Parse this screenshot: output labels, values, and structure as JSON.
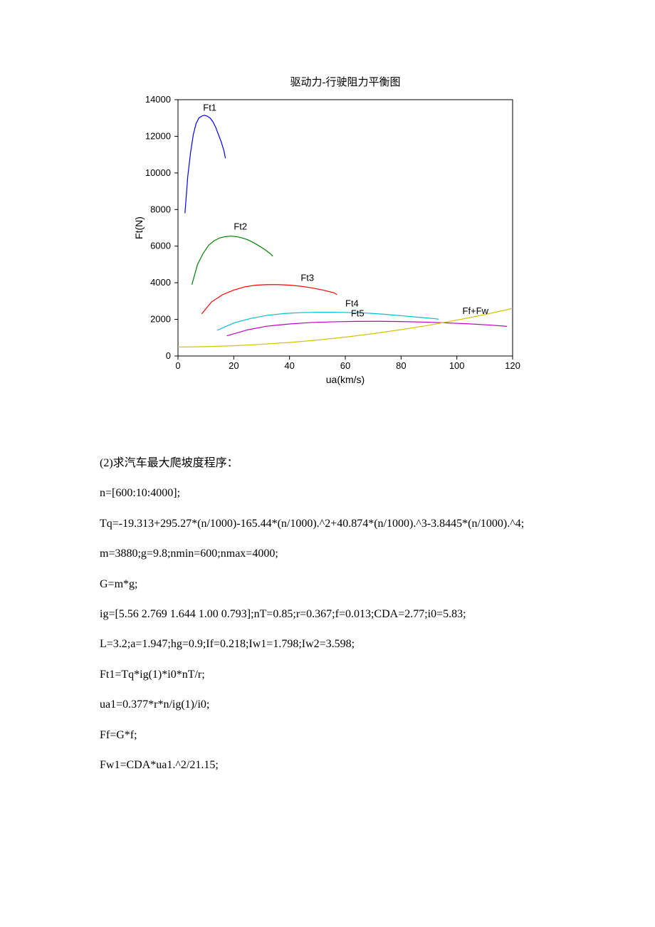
{
  "chart": {
    "type": "line",
    "title": "驱动力-行驶阻力平衡图",
    "title_fontsize": 15,
    "xlabel": "ua(km/s)",
    "ylabel": "Ft(N)",
    "label_fontsize": 14,
    "tick_fontsize": 13,
    "background_color": "#ffffff",
    "axis_color": "#000000",
    "xlim": [
      0,
      120
    ],
    "ylim": [
      0,
      14000
    ],
    "xtick_step": 20,
    "ytick_step": 2000,
    "xticks": [
      0,
      20,
      40,
      60,
      80,
      100,
      120
    ],
    "yticks": [
      0,
      2000,
      4000,
      6000,
      8000,
      10000,
      12000,
      14000
    ],
    "line_width": 1.2,
    "series": [
      {
        "name": "Ft1",
        "label": "Ft1",
        "color": "#0000ff",
        "label_x": 9,
        "label_y": 13400,
        "x": [
          2.5,
          3.5,
          4.5,
          5.5,
          6.5,
          7.5,
          8.5,
          9.5,
          10.5,
          11.5,
          12.5,
          13.5,
          14.5,
          15.5,
          16.5,
          17
        ],
        "y": [
          7800,
          9800,
          11100,
          12100,
          12700,
          13000,
          13100,
          13150,
          13100,
          13000,
          12800,
          12500,
          12100,
          11700,
          11200,
          10800
        ]
      },
      {
        "name": "Ft2",
        "label": "Ft2",
        "color": "#008000",
        "label_x": 20,
        "label_y": 6900,
        "x": [
          5,
          7,
          9,
          11,
          13,
          15,
          17,
          19,
          21,
          23,
          25,
          27,
          29,
          31,
          33,
          34
        ],
        "y": [
          3900,
          5000,
          5600,
          6050,
          6300,
          6450,
          6520,
          6550,
          6520,
          6450,
          6350,
          6200,
          6020,
          5830,
          5600,
          5450
        ]
      },
      {
        "name": "Ft3",
        "label": "Ft3",
        "color": "#ff0000",
        "label_x": 44,
        "label_y": 4100,
        "x": [
          8.5,
          12,
          16,
          20,
          24,
          28,
          32,
          36,
          40,
          44,
          48,
          52,
          56,
          57
        ],
        "y": [
          2300,
          2950,
          3350,
          3600,
          3780,
          3870,
          3900,
          3900,
          3870,
          3810,
          3720,
          3600,
          3450,
          3350
        ]
      },
      {
        "name": "Ft4",
        "label": "Ft4",
        "color": "#00bcd4",
        "label_x": 60,
        "label_y": 2700,
        "x": [
          14,
          20,
          26,
          32,
          38,
          44,
          50,
          56,
          62,
          68,
          74,
          80,
          86,
          92,
          93.5
        ],
        "y": [
          1400,
          1800,
          2050,
          2220,
          2320,
          2370,
          2390,
          2390,
          2370,
          2340,
          2280,
          2200,
          2120,
          2040,
          2010
        ]
      },
      {
        "name": "Ft5",
        "label": "Ft5",
        "color": "#c000c0",
        "label_x": 62,
        "label_y": 2150,
        "x": [
          17.5,
          25,
          32,
          40,
          48,
          56,
          64,
          72,
          80,
          88,
          96,
          104,
          112,
          118
        ],
        "y": [
          1100,
          1430,
          1630,
          1750,
          1830,
          1870,
          1890,
          1895,
          1880,
          1855,
          1810,
          1760,
          1690,
          1620
        ]
      },
      {
        "name": "FfFw",
        "label": "Ff+Fw",
        "color": "#d4c400",
        "label_x": 102,
        "label_y": 2300,
        "x": [
          0,
          10,
          20,
          30,
          40,
          50,
          60,
          70,
          80,
          90,
          100,
          110,
          120
        ],
        "y": [
          490,
          510,
          560,
          640,
          740,
          870,
          1030,
          1220,
          1440,
          1680,
          1960,
          2260,
          2600
        ]
      }
    ]
  },
  "text": {
    "l1": "(2)求汽车最大爬坡度程序：",
    "l2": "n=[600:10:4000];",
    "l3": "Tq=-19.313+295.27*(n/1000)-165.44*(n/1000).^2+40.874*(n/1000).^3-3.8445*(n/1000).^4;",
    "l4": "m=3880;g=9.8;nmin=600;nmax=4000;",
    "l5": "G=m*g;",
    "l6": "ig=[5.56 2.769 1.644 1.00 0.793];nT=0.85;r=0.367;f=0.013;CDA=2.77;i0=5.83;",
    "l7": "L=3.2;a=1.947;hg=0.9;If=0.218;Iw1=1.798;Iw2=3.598;",
    "l8": "Ft1=Tq*ig(1)*i0*nT/r;",
    "l9": "ua1=0.377*r*n/ig(1)/i0;",
    "l10": "Ff=G*f;",
    "l11": "Fw1=CDA*ua1.^2/21.15;"
  }
}
